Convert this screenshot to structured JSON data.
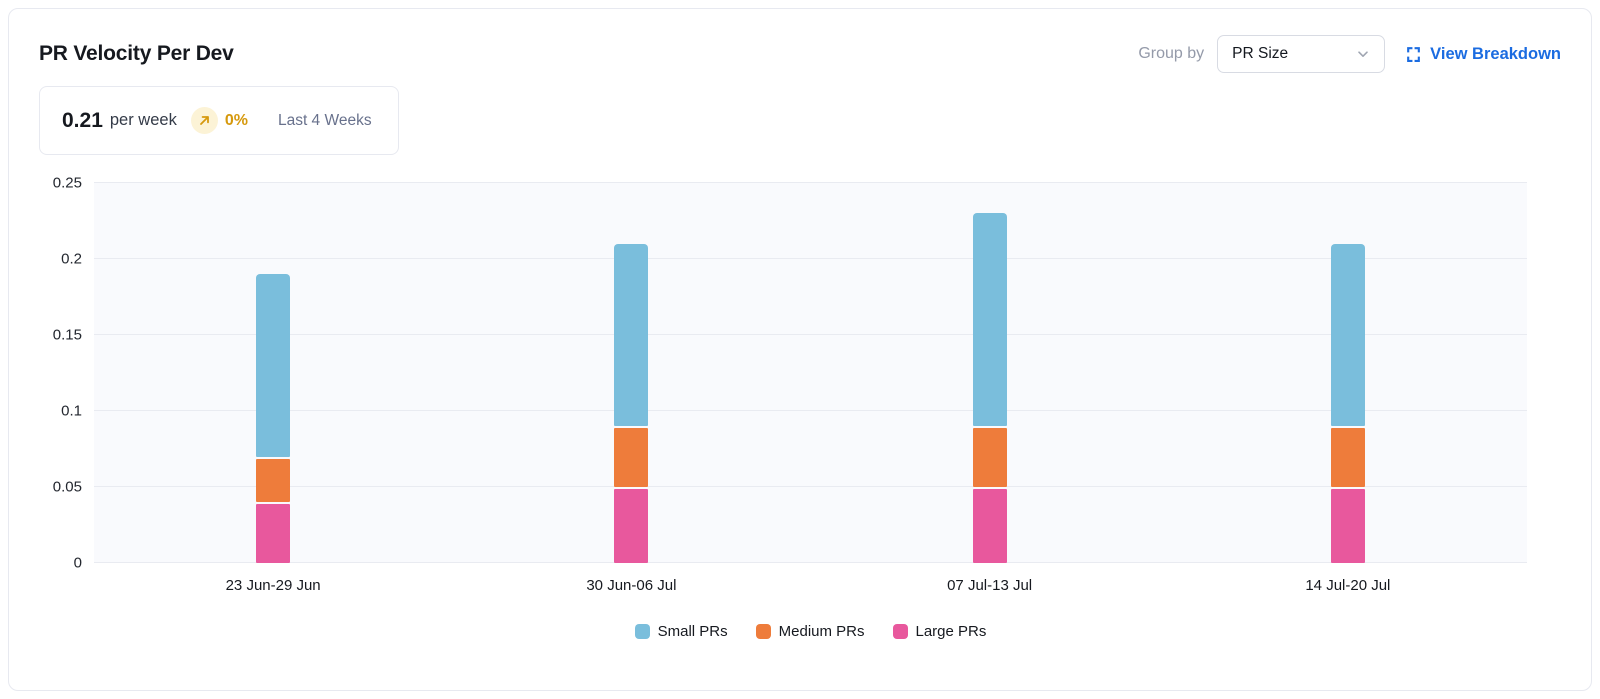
{
  "header": {
    "title": "PR Velocity Per Dev",
    "group_by_label": "Group by",
    "group_by_value": "PR Size",
    "view_breakdown_label": "View Breakdown"
  },
  "summary": {
    "value": "0.21",
    "unit": "per week",
    "trend_icon": "arrow-up-right",
    "change": "0%",
    "period": "Last 4 Weeks"
  },
  "colors": {
    "small_prs": "#7abedc",
    "medium_prs": "#ee7c3b",
    "large_prs": "#e8589d",
    "link_blue": "#1b6ce1",
    "trend_amber": "#d6990d",
    "trend_badge_bg": "#fcf3d6"
  },
  "chart_data": {
    "type": "bar",
    "stacked": true,
    "title": "PR Velocity Per Dev",
    "xlabel": "",
    "ylabel": "",
    "categories": [
      "23 Jun-29 Jun",
      "30 Jun-06 Jul",
      "07 Jul-13 Jul",
      "14 Jul-20 Jul"
    ],
    "series": [
      {
        "name": "Small PRs",
        "color": "#7abedc",
        "values": [
          0.12,
          0.12,
          0.14,
          0.12
        ]
      },
      {
        "name": "Medium PRs",
        "color": "#ee7c3b",
        "values": [
          0.03,
          0.04,
          0.04,
          0.04
        ]
      },
      {
        "name": "Large PRs",
        "color": "#e8589d",
        "values": [
          0.04,
          0.05,
          0.05,
          0.05
        ]
      }
    ],
    "stack_bottom_to_top": [
      "Large PRs",
      "Medium PRs",
      "Small PRs"
    ],
    "totals": [
      0.19,
      0.21,
      0.23,
      0.21
    ],
    "ylim": [
      0,
      0.25
    ],
    "y_ticks": [
      0,
      0.05,
      0.1,
      0.15,
      0.2,
      0.25
    ],
    "y_tick_labels": [
      "0",
      "0.05",
      "0.1",
      "0.15",
      "0.2",
      "0.25"
    ],
    "grid": true,
    "legend_position": "bottom"
  }
}
